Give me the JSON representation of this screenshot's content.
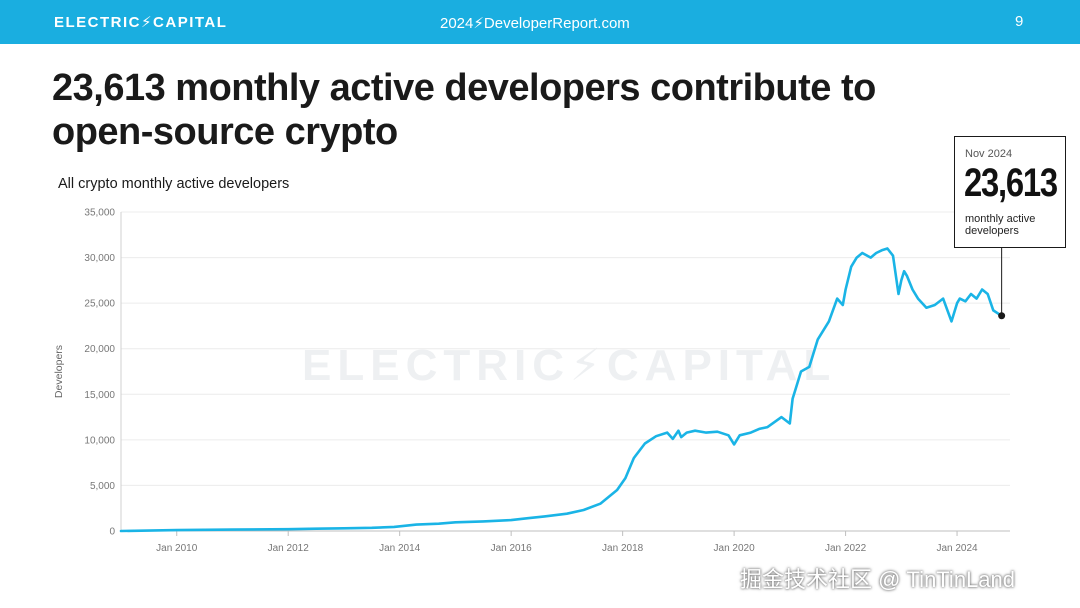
{
  "header": {
    "brand": "ELECTRIC⚡CAPITAL",
    "report": "2024⚡DeveloperReport.com",
    "page": "9",
    "bar_color": "#1aaee0"
  },
  "headline": "23,613 monthly active developers contribute to open-source crypto",
  "watermark": "ELECTRIC⚡CAPITAL",
  "callout": {
    "date": "Nov 2024",
    "value": "23,613",
    "label": "monthly active developers"
  },
  "footer_watermark": "掘金技术社区 @ TinTinLand",
  "chart_data": {
    "type": "line",
    "title": "All crypto monthly active developers",
    "xlabel": "",
    "ylabel": "Developers",
    "ylim": [
      0,
      35000
    ],
    "xlim": [
      2009.0,
      2024.95
    ],
    "yticks": [
      0,
      5000,
      10000,
      15000,
      20000,
      25000,
      30000,
      35000
    ],
    "ytick_labels": [
      "0",
      "5,000",
      "10,000",
      "15,000",
      "20,000",
      "25,000",
      "30,000",
      "35,000"
    ],
    "xticks": [
      2010,
      2012,
      2014,
      2016,
      2018,
      2020,
      2022,
      2024
    ],
    "xtick_labels": [
      "Jan 2010",
      "Jan 2012",
      "Jan 2014",
      "Jan 2016",
      "Jan 2018",
      "Jan 2020",
      "Jan 2022",
      "Jan 2024"
    ],
    "grid": true,
    "color": "#1ab4e6",
    "series": [
      {
        "name": "All crypto monthly active developers",
        "x": [
          2009.0,
          2010.0,
          2011.0,
          2012.0,
          2012.5,
          2013.0,
          2013.5,
          2013.9,
          2014.3,
          2014.7,
          2015.0,
          2015.5,
          2016.0,
          2016.3,
          2016.6,
          2017.0,
          2017.3,
          2017.6,
          2017.9,
          2018.05,
          2018.2,
          2018.4,
          2018.6,
          2018.8,
          2018.9,
          2019.0,
          2019.05,
          2019.15,
          2019.3,
          2019.5,
          2019.7,
          2019.9,
          2020.0,
          2020.1,
          2020.3,
          2020.45,
          2020.6,
          2020.85,
          2021.0,
          2021.05,
          2021.1,
          2021.2,
          2021.35,
          2021.5,
          2021.7,
          2021.85,
          2021.95,
          2022.0,
          2022.1,
          2022.2,
          2022.3,
          2022.45,
          2022.55,
          2022.65,
          2022.75,
          2022.85,
          2022.95,
          2023.0,
          2023.05,
          2023.1,
          2023.2,
          2023.3,
          2023.45,
          2023.6,
          2023.75,
          2023.9,
          2024.0,
          2024.05,
          2024.15,
          2024.25,
          2024.35,
          2024.45,
          2024.55,
          2024.65,
          2024.8
        ],
        "values": [
          0,
          100,
          150,
          200,
          250,
          300,
          350,
          450,
          700,
          800,
          950,
          1050,
          1200,
          1400,
          1600,
          1900,
          2300,
          3000,
          4500,
          5800,
          8000,
          9600,
          10400,
          10800,
          10100,
          11000,
          10300,
          10800,
          11000,
          10800,
          10900,
          10500,
          9500,
          10500,
          10800,
          11200,
          11400,
          12500,
          11800,
          14500,
          15500,
          17500,
          18000,
          21000,
          23000,
          25500,
          24800,
          26500,
          29000,
          30000,
          30500,
          30000,
          30500,
          30800,
          31000,
          30200,
          26000,
          27500,
          28500,
          28000,
          26500,
          25500,
          24500,
          24800,
          25500,
          23000,
          25000,
          25500,
          25200,
          26000,
          25500,
          26500,
          26000,
          24200,
          23613
        ]
      }
    ]
  }
}
